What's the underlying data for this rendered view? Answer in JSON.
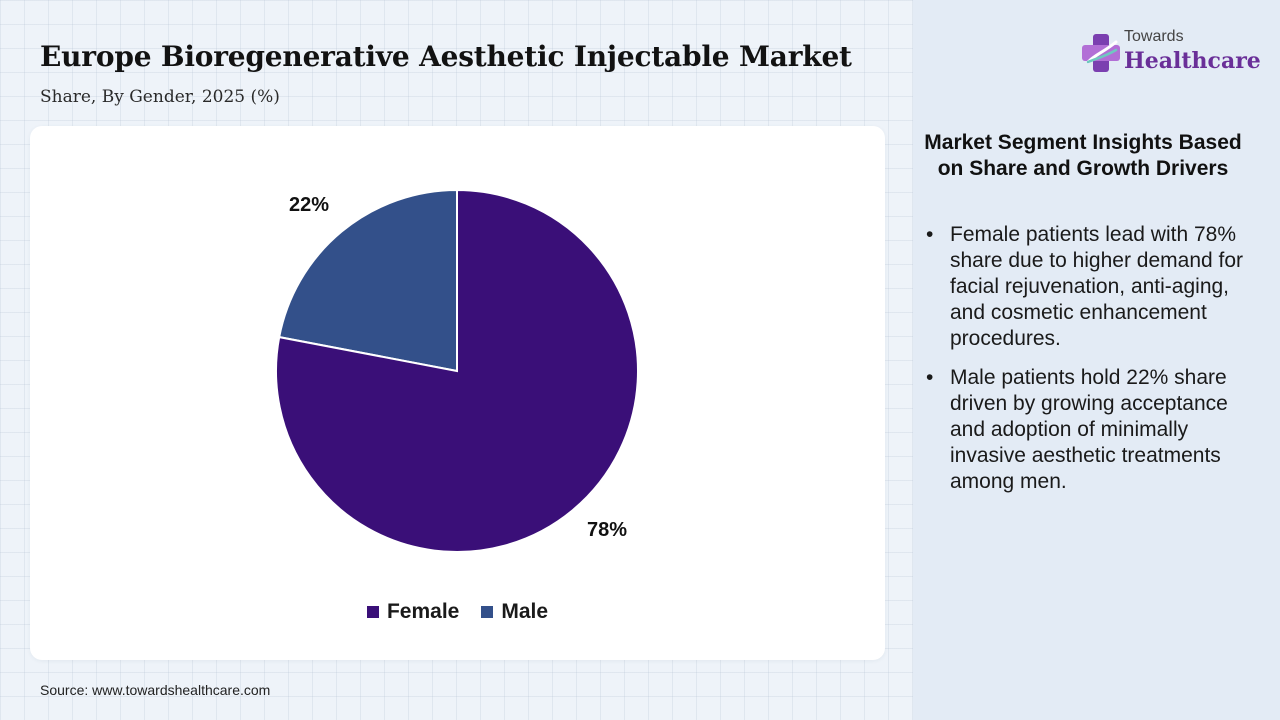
{
  "header": {
    "title": "Europe Bioregenerative Aesthetic Injectable Market",
    "subtitle": "Share, By Gender, 2025 (%)"
  },
  "logo": {
    "line1": "Towards",
    "line2": "Healthcare"
  },
  "chart_data": {
    "type": "pie",
    "title": "Europe Bioregenerative Aesthetic Injectable Market",
    "subtitle": "Share, By Gender, 2025 (%)",
    "categories": [
      "Female",
      "Male"
    ],
    "values": [
      78,
      22
    ],
    "labels": [
      "78%",
      "22%"
    ],
    "colors": [
      "#3a0f78",
      "#33508a"
    ],
    "legend_position": "bottom"
  },
  "insights": {
    "title": "Market Segment Insights Based on Share and Growth Drivers",
    "bullets": [
      "Female patients lead with 78% share due to higher demand for facial rejuvenation, anti-aging, and cosmetic enhancement procedures.",
      "Male patients hold 22% share driven by growing acceptance and adoption of minimally invasive aesthetic treatments among men."
    ]
  },
  "source": "Source: www.towardshealthcare.com"
}
